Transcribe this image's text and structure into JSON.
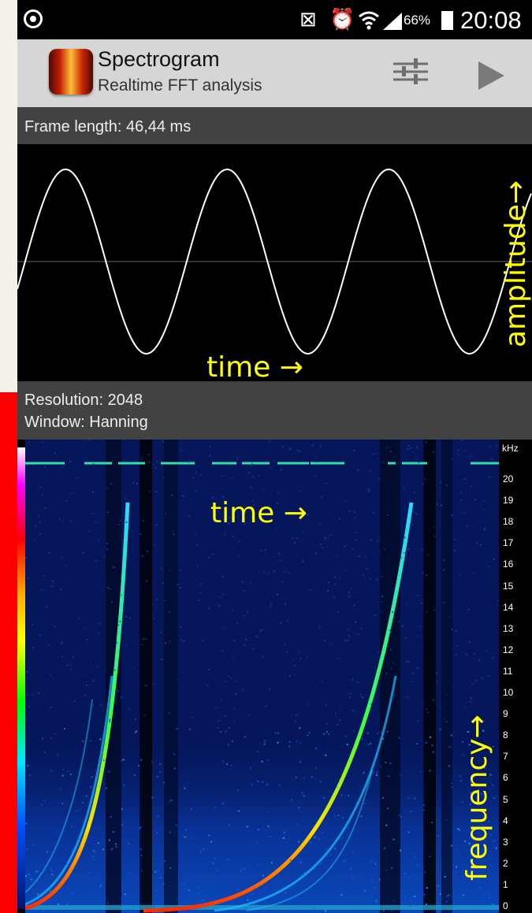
{
  "status_bar": {
    "icons": [
      "app-notification-icon",
      "mute-icon",
      "alarm-icon",
      "wifi-icon",
      "signal-icon",
      "battery-icon"
    ],
    "battery": "66%",
    "time": "20:08"
  },
  "app_bar": {
    "title": "Spectrogram",
    "subtitle": "Realtime FFT analysis",
    "actions": [
      "settings-sliders-icon",
      "play-icon"
    ]
  },
  "waveform": {
    "frame_length": "Frame length: 46,44 ms",
    "annotation_time": "time →",
    "annotation_amplitude": "amplitude→"
  },
  "spectrogram": {
    "resolution": "Resolution: 2048",
    "window": "Window: Hanning",
    "annotation_time": "time →",
    "annotation_frequency": "frequency→",
    "axis_unit": "kHz",
    "axis_ticks": [
      "20",
      "19",
      "18",
      "17",
      "16",
      "15",
      "14",
      "13",
      "12",
      "11",
      "10",
      "9",
      "8",
      "7",
      "6",
      "5",
      "4",
      "3",
      "2",
      "1",
      "0"
    ]
  },
  "colors": {
    "accent_annotation": "#ffff00",
    "app_bar": "#d6d6d6",
    "info_bar": "#424242",
    "side_bar": "#fb0000"
  }
}
